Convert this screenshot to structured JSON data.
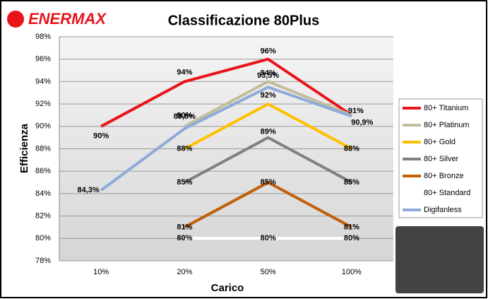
{
  "chart_data": {
    "type": "line",
    "logo": "ENERMAX",
    "title": "Classificazione 80Plus",
    "x_label": "Carico",
    "y_label": "Efficienza",
    "categories": [
      "10%",
      "20%",
      "50%",
      "100%"
    ],
    "ylim": [
      78,
      98
    ],
    "yticks": [
      {
        "value": 78,
        "label": "78%"
      },
      {
        "value": 80,
        "label": "80%"
      },
      {
        "value": 82,
        "label": "82%"
      },
      {
        "value": 84,
        "label": "84%"
      },
      {
        "value": 86,
        "label": "86%"
      },
      {
        "value": 88,
        "label": "88%"
      },
      {
        "value": 90,
        "label": "90%"
      },
      {
        "value": 92,
        "label": "92%"
      },
      {
        "value": 94,
        "label": "94%"
      },
      {
        "value": 96,
        "label": "96%"
      },
      {
        "value": 98,
        "label": "98%"
      }
    ],
    "grid": true,
    "legend": "right",
    "series": [
      {
        "name": "80+ Titanium",
        "color": "#e8141b",
        "values": [
          90,
          94,
          96,
          91
        ],
        "value_labels": [
          "90%",
          "94%",
          "96%",
          "91%"
        ]
      },
      {
        "name": "80+ Platinum",
        "color": "#c4bc9a",
        "values": [
          null,
          90,
          94,
          91
        ],
        "value_labels": [
          null,
          "90%",
          "94%",
          null
        ]
      },
      {
        "name": "80+ Gold",
        "color": "#ffc000",
        "values": [
          null,
          88,
          92,
          88
        ],
        "value_labels": [
          null,
          "88%",
          "92%",
          "88%"
        ]
      },
      {
        "name": "80+ Silver",
        "color": "#808080",
        "values": [
          null,
          85,
          89,
          85
        ],
        "value_labels": [
          null,
          "85%",
          "89%",
          "85%"
        ]
      },
      {
        "name": "80+ Bronze",
        "color": "#c0600a",
        "values": [
          null,
          81,
          85,
          81
        ],
        "value_labels": [
          null,
          "81%",
          "85%",
          "81%"
        ]
      },
      {
        "name": "80+ Standard",
        "color": "#ffffff",
        "values": [
          null,
          80,
          80,
          80
        ],
        "value_labels": [
          null,
          "80%",
          "80%",
          "80%"
        ]
      },
      {
        "name": "Digifanless",
        "color": "#8eaad8",
        "values": [
          84.3,
          89.8,
          93.5,
          90.9
        ],
        "value_labels": [
          "84,3%",
          "89,8%",
          "93,5%",
          "90,9%"
        ]
      }
    ]
  }
}
